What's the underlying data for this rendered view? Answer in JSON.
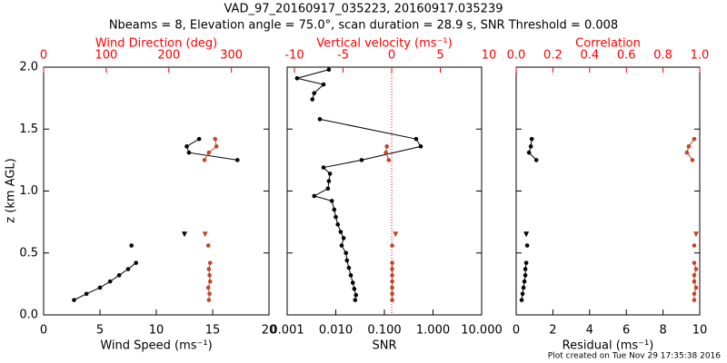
{
  "title": "VAD_97_20160917_035223, 20160917.035239",
  "subtitle": "Nbeams = 8, Elevation angle = 75.0°, scan duration = 28.9 s, SNR Threshold = 0.008",
  "footer": "Plot created on Tue Nov 29 17:35:38 2016",
  "chart_data": [
    {
      "type": "scatter",
      "ylabel": "z (km AGL)",
      "ytick_labels": true,
      "ylim": [
        0,
        2
      ],
      "yticks": [
        {
          "value": 0,
          "label": "0.0"
        },
        {
          "value": 0.5,
          "label": "0.5"
        },
        {
          "value": 1,
          "label": "1.0"
        },
        {
          "value": 1.5,
          "label": "1.5"
        },
        {
          "value": 2,
          "label": "2.0"
        }
      ],
      "xlabel": "Wind Speed (ms⁻¹)",
      "xlim": [
        0,
        20
      ],
      "xticks": [
        0,
        5,
        10,
        15,
        20
      ],
      "x2label": "Wind Direction (deg)",
      "x2_color": "#ff0000",
      "x2lim": [
        0,
        360
      ],
      "x2ticks": [
        0,
        100,
        200,
        300
      ],
      "series": [
        {
          "color": "#000000",
          "marker": "circle",
          "line": true,
          "x": [
            2.7,
            3.8,
            5.0,
            5.9,
            6.7,
            7.5,
            8.2,
            null,
            7.8,
            null,
            13.8,
            12.7,
            12.9,
            17.2
          ],
          "values": [
            0.12,
            0.17,
            0.22,
            0.27,
            0.32,
            0.37,
            0.42,
            null,
            0.56,
            null,
            1.42,
            1.36,
            1.31,
            1.25
          ]
        },
        {
          "color": "#000000",
          "marker": "triangle",
          "line": false,
          "x": [
            12.5
          ],
          "values": [
            0.65
          ]
        },
        {
          "color": "#c0452a",
          "marker": "circle",
          "line": true,
          "axis": "x2",
          "x": [
            264,
            265,
            263,
            266,
            265,
            264,
            266,
            null,
            263,
            null,
            274,
            276,
            264,
            257
          ],
          "values": [
            0.12,
            0.17,
            0.22,
            0.27,
            0.32,
            0.37,
            0.42,
            null,
            0.56,
            null,
            1.42,
            1.36,
            1.31,
            1.25
          ]
        },
        {
          "color": "#c0452a",
          "marker": "triangle",
          "line": false,
          "axis": "x2",
          "x": [
            258
          ],
          "values": [
            0.65
          ]
        }
      ]
    },
    {
      "type": "scatter",
      "ytick_labels": false,
      "ylim": [
        0,
        2
      ],
      "yticks": [
        0,
        0.5,
        1,
        1.5,
        2
      ],
      "xlabel": "SNR",
      "xscale": "log",
      "xlim": [
        0.001,
        10
      ],
      "xticks": [
        {
          "value": 0.001,
          "label": "0.001"
        },
        {
          "value": 0.01,
          "label": "0.010"
        },
        {
          "value": 0.1,
          "label": "0.100"
        },
        {
          "value": 1,
          "label": "1.000"
        },
        {
          "value": 10,
          "label": "10.000"
        }
      ],
      "x2label": "Vertical velocity (ms⁻¹)",
      "x2_color": "#ff0000",
      "x2lim": [
        -10.75,
        9.25
      ],
      "x2ticks": [
        -10,
        -5,
        0,
        5,
        10
      ],
      "zero_line": true,
      "series": [
        {
          "color": "#000000",
          "marker": "circle",
          "line": true,
          "x": [
            0.0072,
            0.0016,
            0.0056,
            0.0036,
            0.0033,
            null,
            0.0047,
            0.45,
            0.56,
            0.034,
            0.0056,
            0.0076,
            0.0072,
            0.0069,
            0.0036,
            0.0083,
            0.0093,
            0.01,
            0.011,
            0.0126,
            0.0145,
            0.0132,
            0.0162,
            0.017,
            0.0186,
            0.0204,
            0.0224,
            0.024,
            0.026,
            0.025
          ],
          "values": [
            1.98,
            1.91,
            1.86,
            1.79,
            1.74,
            null,
            1.58,
            1.42,
            1.36,
            1.25,
            1.19,
            1.14,
            1.08,
            1.02,
            0.96,
            0.92,
            0.85,
            0.79,
            0.73,
            0.67,
            0.62,
            0.56,
            0.5,
            0.44,
            0.38,
            0.32,
            0.26,
            0.21,
            0.16,
            0.12
          ]
        },
        {
          "color": "#c0452a",
          "marker": "circle",
          "line": true,
          "axis": "x2",
          "x": [
            -0.5,
            -0.6,
            -0.3,
            null,
            0.05,
            0.05,
            0.05,
            0.05,
            0.05,
            0.05,
            0.05,
            null,
            0.05
          ],
          "values": [
            1.36,
            1.31,
            1.25,
            null,
            0.42,
            0.37,
            0.32,
            0.27,
            0.22,
            0.17,
            0.12,
            null,
            0.56
          ]
        },
        {
          "color": "#c0452a",
          "marker": "triangle",
          "line": false,
          "axis": "x2",
          "x": [
            0.4
          ],
          "values": [
            0.65
          ]
        }
      ]
    },
    {
      "type": "scatter",
      "ytick_labels": false,
      "ylim": [
        0,
        2
      ],
      "yticks": [
        0,
        0.5,
        1,
        1.5,
        2
      ],
      "xlabel": "Residual (ms⁻¹)",
      "xlim": [
        0,
        10
      ],
      "xticks": [
        0,
        2,
        4,
        6,
        8,
        10
      ],
      "x2label": "Correlation",
      "x2_color": "#ff0000",
      "x2lim": [
        0,
        1
      ],
      "x2ticks": [
        {
          "value": 0,
          "label": "0.0"
        },
        {
          "value": 0.2,
          "label": "0.2"
        },
        {
          "value": 0.4,
          "label": "0.4"
        },
        {
          "value": 0.6,
          "label": "0.6"
        },
        {
          "value": 0.8,
          "label": "0.8"
        },
        {
          "value": 1,
          "label": "1.0"
        }
      ],
      "series": [
        {
          "color": "#000000",
          "marker": "circle",
          "line": true,
          "x": [
            0.3,
            0.35,
            0.4,
            0.45,
            0.5,
            0.5,
            0.55,
            null,
            0.6,
            null,
            0.85,
            0.8,
            0.7,
            1.1
          ],
          "values": [
            0.12,
            0.17,
            0.22,
            0.27,
            0.32,
            0.37,
            0.42,
            null,
            0.56,
            null,
            1.42,
            1.36,
            1.31,
            1.25
          ]
        },
        {
          "color": "#000000",
          "marker": "triangle",
          "line": false,
          "x": [
            0.55
          ],
          "values": [
            0.65
          ]
        },
        {
          "color": "#c0452a",
          "marker": "circle",
          "line": true,
          "axis": "x2",
          "x": [
            0.97,
            0.97,
            0.98,
            0.97,
            0.97,
            0.98,
            0.97,
            null,
            0.97,
            null,
            0.97,
            0.94,
            0.93,
            0.96
          ],
          "values": [
            0.12,
            0.17,
            0.22,
            0.27,
            0.32,
            0.37,
            0.42,
            null,
            0.56,
            null,
            1.42,
            1.36,
            1.31,
            1.25
          ]
        },
        {
          "color": "#c0452a",
          "marker": "triangle",
          "line": false,
          "axis": "x2",
          "x": [
            0.98
          ],
          "values": [
            0.65
          ]
        }
      ]
    }
  ]
}
